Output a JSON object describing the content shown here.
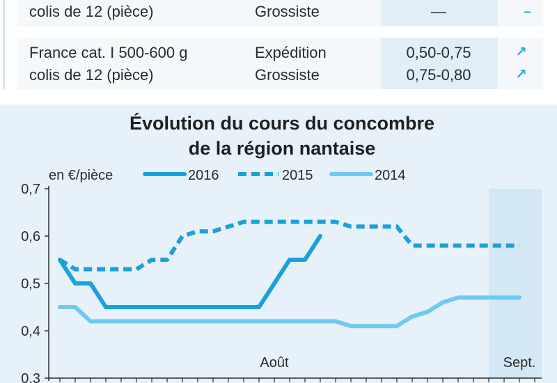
{
  "table": {
    "rows": [
      {
        "product_line1": "",
        "product_line2": "colis de 12 (pièce)",
        "stage_line1": "",
        "stage_line2": "Grossiste",
        "price_line1": "",
        "price_line2": "—",
        "trend_line1": "",
        "trend_line2": "–"
      },
      {
        "product_line1": "France cat. I 500-600 g",
        "product_line2": "colis de 12 (pièce)",
        "stage_line1": "Expédition",
        "stage_line2": "Grossiste",
        "price_line1": "0,50-0,75",
        "price_line2": "0,75-0,80",
        "trend_line1": "↗",
        "trend_line2": "↗"
      }
    ]
  },
  "colors": {
    "s2016": "#1aa0db",
    "s2015": "#1aa0db",
    "s2014": "#6fcaee",
    "axis": "#2b2b2b",
    "panel": "#e6f1f9",
    "september_band": "#d3e7f5"
  },
  "chart_data": {
    "type": "line",
    "title_line1": "Évolution du cours du concombre",
    "title_line2": "de la région nantaise",
    "unit_label": "en €/pièce",
    "ylim": [
      0.3,
      0.7
    ],
    "y_ticks": [
      0.3,
      0.4,
      0.5,
      0.6,
      0.7
    ],
    "y_tick_labels": [
      "0,3",
      "0,4",
      "0,5",
      "0,6",
      "0,7"
    ],
    "x_labels": [
      "Août",
      "Sept."
    ],
    "x_label_positions": [
      14,
      30
    ],
    "xlim": [
      0,
      31
    ],
    "legend": [
      "2016",
      "2015",
      "2014"
    ],
    "legend_placement": "top",
    "series": [
      {
        "name": "2016",
        "style": "solid",
        "x": [
          0,
          1,
          2,
          3,
          4,
          5,
          6,
          7,
          8,
          9,
          10,
          11,
          12,
          13,
          14,
          15,
          16,
          17
        ],
        "values": [
          0.55,
          0.5,
          0.5,
          0.45,
          0.45,
          0.45,
          0.45,
          0.45,
          0.45,
          0.45,
          0.45,
          0.45,
          0.45,
          0.45,
          0.5,
          0.55,
          0.55,
          0.6
        ]
      },
      {
        "name": "2015",
        "style": "dashed",
        "x": [
          0,
          1,
          2,
          3,
          4,
          5,
          6,
          7,
          8,
          9,
          10,
          11,
          12,
          13,
          14,
          15,
          16,
          17,
          18,
          19,
          20,
          21,
          22,
          23,
          24,
          25,
          26,
          27,
          28,
          29,
          30
        ],
        "values": [
          0.55,
          0.53,
          0.53,
          0.53,
          0.53,
          0.53,
          0.55,
          0.55,
          0.6,
          0.61,
          0.61,
          0.62,
          0.63,
          0.63,
          0.63,
          0.63,
          0.63,
          0.63,
          0.63,
          0.62,
          0.62,
          0.62,
          0.62,
          0.58,
          0.58,
          0.58,
          0.58,
          0.58,
          0.58,
          0.58,
          0.58
        ]
      },
      {
        "name": "2014",
        "style": "solid",
        "x": [
          0,
          1,
          2,
          3,
          4,
          5,
          6,
          7,
          8,
          9,
          10,
          11,
          12,
          13,
          14,
          15,
          16,
          17,
          18,
          19,
          20,
          21,
          22,
          23,
          24,
          25,
          26,
          27,
          28,
          29,
          30
        ],
        "values": [
          0.45,
          0.45,
          0.42,
          0.42,
          0.42,
          0.42,
          0.42,
          0.42,
          0.42,
          0.42,
          0.42,
          0.42,
          0.42,
          0.42,
          0.42,
          0.42,
          0.42,
          0.42,
          0.42,
          0.41,
          0.41,
          0.41,
          0.41,
          0.43,
          0.44,
          0.46,
          0.47,
          0.47,
          0.47,
          0.47,
          0.47
        ]
      }
    ]
  }
}
